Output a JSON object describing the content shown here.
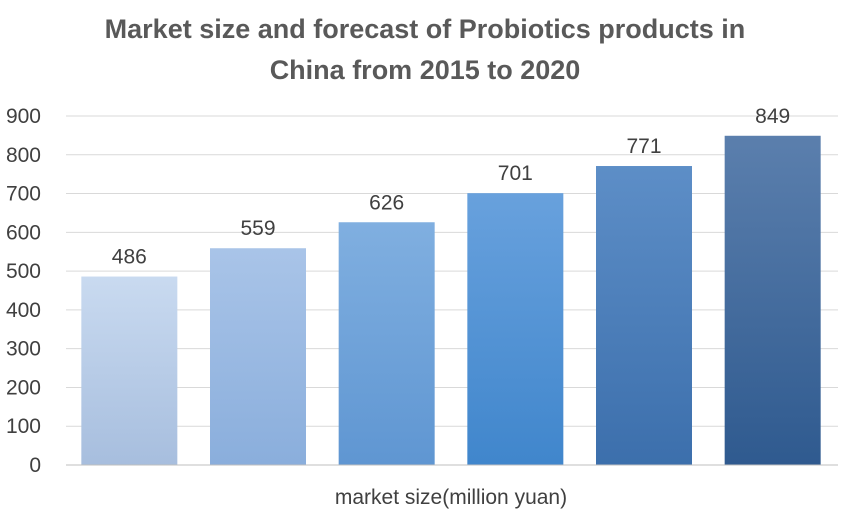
{
  "chart_data": {
    "type": "bar",
    "title_lines": [
      "Market size and forecast of Probiotics products in",
      "China from 2015 to 2020"
    ],
    "xlabel": "market size(million yuan)",
    "ylabel": "",
    "categories": [
      "",
      "",
      "",
      "",
      "",
      ""
    ],
    "values": [
      486,
      559,
      626,
      701,
      771,
      849
    ],
    "data_labels": [
      "486",
      "559",
      "626",
      "701",
      "771",
      "849"
    ],
    "ylim": [
      0,
      900
    ],
    "yticks": [
      0,
      100,
      200,
      300,
      400,
      500,
      600,
      700,
      800,
      900
    ],
    "grid": true,
    "legend": "none",
    "bar_gradients": [
      {
        "top": "#c9daf0",
        "bottom": "#a7bede"
      },
      {
        "top": "#a9c4e8",
        "bottom": "#8aaedc"
      },
      {
        "top": "#80afe0",
        "bottom": "#5f96d2"
      },
      {
        "top": "#68a1dd",
        "bottom": "#4086cc"
      },
      {
        "top": "#5d8ec7",
        "bottom": "#3c6fac"
      },
      {
        "top": "#5b7fad",
        "bottom": "#2f5a8f"
      }
    ]
  }
}
